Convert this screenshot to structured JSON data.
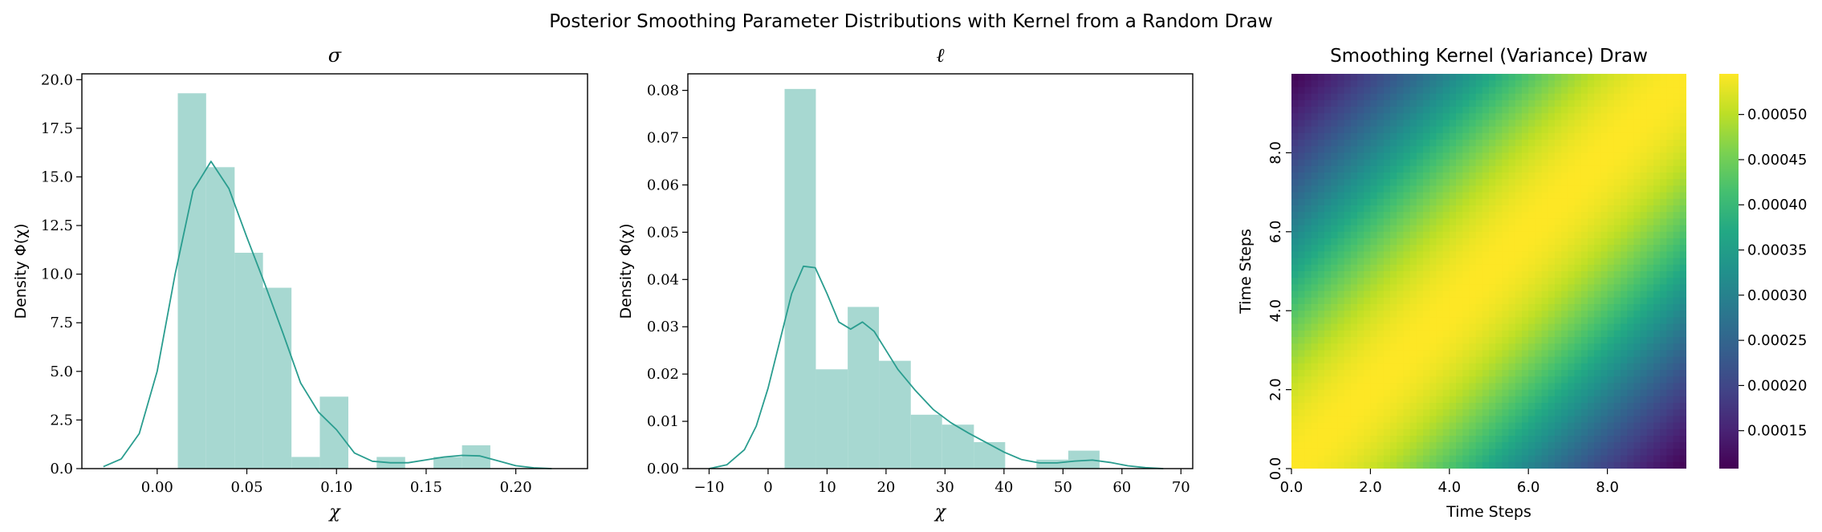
{
  "figure": {
    "suptitle": "Posterior Smoothing Parameter Distributions with Kernel from a Random Draw"
  },
  "colors": {
    "hist_fill": "#a7d8d1",
    "kde_line": "#2a9d8f"
  },
  "chart_data": [
    {
      "type": "bar",
      "title": "σ",
      "xlabel": "χ",
      "ylabel": "Density Φ(χ)",
      "xlim": [
        -0.042,
        0.24
      ],
      "ylim": [
        0,
        20.3
      ],
      "xticks": [
        0.0,
        0.05,
        0.1,
        0.15,
        0.2
      ],
      "xtick_labels": [
        "0.00",
        "0.05",
        "0.10",
        "0.15",
        "0.20"
      ],
      "yticks": [
        0,
        2.5,
        5,
        7.5,
        10,
        12.5,
        15,
        17.5,
        20
      ],
      "ytick_labels": [
        "0.0",
        "2.5",
        "5.0",
        "7.5",
        "10.0",
        "12.5",
        "15.0",
        "17.5",
        "20.0"
      ],
      "bin_edges": [
        0.0115,
        0.0273,
        0.0432,
        0.059,
        0.0749,
        0.0907,
        0.1066,
        0.1224,
        0.1383,
        0.1541,
        0.17,
        0.1858
      ],
      "values": [
        19.3,
        15.5,
        11.1,
        9.3,
        0.6,
        3.7,
        0.0,
        0.6,
        0.0,
        0.6,
        1.2
      ],
      "kde": {
        "x": [
          -0.03,
          -0.02,
          -0.01,
          0.0,
          0.01,
          0.02,
          0.03,
          0.04,
          0.05,
          0.06,
          0.07,
          0.08,
          0.09,
          0.1,
          0.11,
          0.12,
          0.13,
          0.14,
          0.15,
          0.16,
          0.17,
          0.18,
          0.19,
          0.2,
          0.21,
          0.22
        ],
        "y": [
          0.1,
          0.5,
          1.8,
          5.0,
          10.0,
          14.3,
          15.8,
          14.4,
          11.9,
          9.5,
          7.0,
          4.4,
          2.9,
          2.0,
          0.8,
          0.38,
          0.3,
          0.3,
          0.45,
          0.6,
          0.68,
          0.65,
          0.4,
          0.15,
          0.04,
          0.0
        ]
      }
    },
    {
      "type": "bar",
      "title": "ℓ",
      "xlabel": "χ",
      "ylabel": "Density Φ(χ)",
      "xlim": [
        -13.6,
        72.0
      ],
      "ylim": [
        0,
        0.0835
      ],
      "xticks": [
        -10,
        0,
        10,
        20,
        30,
        40,
        50,
        60,
        70
      ],
      "xtick_labels": [
        "−10",
        "0",
        "10",
        "20",
        "30",
        "40",
        "50",
        "60",
        "70"
      ],
      "yticks": [
        0,
        0.01,
        0.02,
        0.03,
        0.04,
        0.05,
        0.06,
        0.07,
        0.08
      ],
      "ytick_labels": [
        "0.00",
        "0.01",
        "0.02",
        "0.03",
        "0.04",
        "0.05",
        "0.06",
        "0.07",
        "0.08"
      ],
      "bin_edges": [
        2.8,
        8.1,
        13.5,
        18.8,
        24.2,
        29.5,
        34.9,
        40.2,
        45.5,
        50.9,
        56.2
      ],
      "values": [
        0.0803,
        0.021,
        0.0342,
        0.0228,
        0.0114,
        0.0093,
        0.0056,
        0.0,
        0.0019,
        0.0038
      ],
      "kde": {
        "x": [
          -10,
          -7,
          -4,
          -2,
          0,
          2,
          4,
          6,
          8,
          10,
          12,
          14,
          16,
          18,
          20,
          22,
          25,
          28,
          31,
          34,
          37,
          40,
          43,
          46,
          49,
          52,
          55,
          58,
          61,
          64,
          67
        ],
        "y": [
          0.0,
          0.0008,
          0.004,
          0.009,
          0.017,
          0.027,
          0.037,
          0.0428,
          0.0425,
          0.037,
          0.031,
          0.0295,
          0.031,
          0.029,
          0.025,
          0.021,
          0.0165,
          0.0125,
          0.0097,
          0.0075,
          0.0055,
          0.0035,
          0.0019,
          0.0012,
          0.0012,
          0.0016,
          0.0018,
          0.0013,
          0.0006,
          0.0002,
          0.0
        ]
      }
    },
    {
      "type": "heatmap",
      "title": "Smoothing Kernel (Variance) Draw",
      "xlabel": "Time Steps",
      "ylabel": "Time Steps",
      "xlim": [
        0,
        10
      ],
      "ylim": [
        0,
        10
      ],
      "xticks": [
        0,
        2,
        4,
        6,
        8
      ],
      "xtick_labels": [
        "0.0",
        "2.0",
        "4.0",
        "6.0",
        "8.0"
      ],
      "yticks": [
        0,
        2,
        4,
        6,
        8
      ],
      "ytick_labels": [
        "0.0",
        "2.0",
        "4.0",
        "6.0",
        "8.0"
      ],
      "colormap": "viridis",
      "value_range": [
        0.000108,
        0.000545
      ],
      "kernel": {
        "form": "squared-exponential",
        "max_value": 0.000545,
        "min_value": 0.000108,
        "min_at_distance": 10
      },
      "colorbar": {
        "ticks": [
          0.00015,
          0.0002,
          0.00025,
          0.0003,
          0.00035,
          0.0004,
          0.00045,
          0.0005
        ],
        "tick_labels": [
          "0.00015",
          "0.00020",
          "0.00025",
          "0.00030",
          "0.00035",
          "0.00040",
          "0.00045",
          "0.00050"
        ]
      }
    }
  ]
}
